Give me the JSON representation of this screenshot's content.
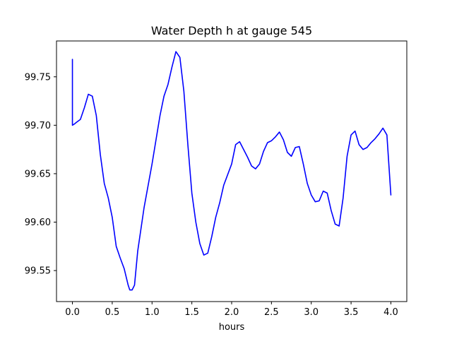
{
  "chart_data": {
    "type": "line",
    "title": "Water Depth h at gauge 545",
    "xlabel": "hours",
    "ylabel": "",
    "xlim": [
      -0.2,
      4.2
    ],
    "ylim": [
      99.518,
      99.787
    ],
    "xticks": [
      0.0,
      0.5,
      1.0,
      1.5,
      2.0,
      2.5,
      3.0,
      3.5,
      4.0
    ],
    "xtick_labels": [
      "0.0",
      "0.5",
      "1.0",
      "1.5",
      "2.0",
      "2.5",
      "3.0",
      "3.5",
      "4.0"
    ],
    "yticks": [
      99.55,
      99.6,
      99.65,
      99.7,
      99.75
    ],
    "ytick_labels": [
      "99.55",
      "99.60",
      "99.65",
      "99.70",
      "99.75"
    ],
    "grid": false,
    "color": "#0000ff",
    "series": [
      {
        "x": [
          0.0,
          0.0,
          0.02,
          0.05,
          0.1,
          0.15,
          0.2,
          0.25,
          0.3,
          0.35,
          0.4,
          0.45,
          0.5,
          0.55,
          0.6,
          0.65,
          0.7,
          0.72,
          0.75,
          0.78,
          0.82,
          0.9,
          1.0,
          1.05,
          1.1,
          1.15,
          1.2,
          1.25,
          1.3,
          1.35,
          1.4,
          1.45,
          1.5,
          1.55,
          1.6,
          1.65,
          1.7,
          1.75,
          1.8,
          1.85,
          1.9,
          2.0,
          2.05,
          2.1,
          2.15,
          2.2,
          2.25,
          2.3,
          2.35,
          2.4,
          2.45,
          2.5,
          2.55,
          2.6,
          2.65,
          2.7,
          2.75,
          2.8,
          2.85,
          2.9,
          2.95,
          3.0,
          3.05,
          3.1,
          3.15,
          3.2,
          3.25,
          3.3,
          3.35,
          3.4,
          3.45,
          3.5,
          3.55,
          3.6,
          3.65,
          3.7,
          3.75,
          3.8,
          3.85,
          3.9,
          3.95,
          4.0
        ],
        "y": [
          99.768,
          99.7,
          99.701,
          99.703,
          99.706,
          99.718,
          99.732,
          99.73,
          99.71,
          99.67,
          99.64,
          99.625,
          99.605,
          99.575,
          99.563,
          99.552,
          99.535,
          99.53,
          99.53,
          99.535,
          99.57,
          99.615,
          99.66,
          99.685,
          99.71,
          99.73,
          99.742,
          99.76,
          99.776,
          99.77,
          99.735,
          99.68,
          99.63,
          99.6,
          99.578,
          99.566,
          99.568,
          99.585,
          99.605,
          99.62,
          99.638,
          99.66,
          99.68,
          99.683,
          99.675,
          99.667,
          99.658,
          99.655,
          99.66,
          99.673,
          99.682,
          99.684,
          99.688,
          99.693,
          99.685,
          99.672,
          99.668,
          99.677,
          99.678,
          99.66,
          99.64,
          99.628,
          99.621,
          99.622,
          99.632,
          99.63,
          99.612,
          99.598,
          99.596,
          99.625,
          99.668,
          99.69,
          99.694,
          99.68,
          99.675,
          99.677,
          99.682,
          99.686,
          99.691,
          99.697,
          99.69,
          99.628
        ]
      }
    ]
  }
}
